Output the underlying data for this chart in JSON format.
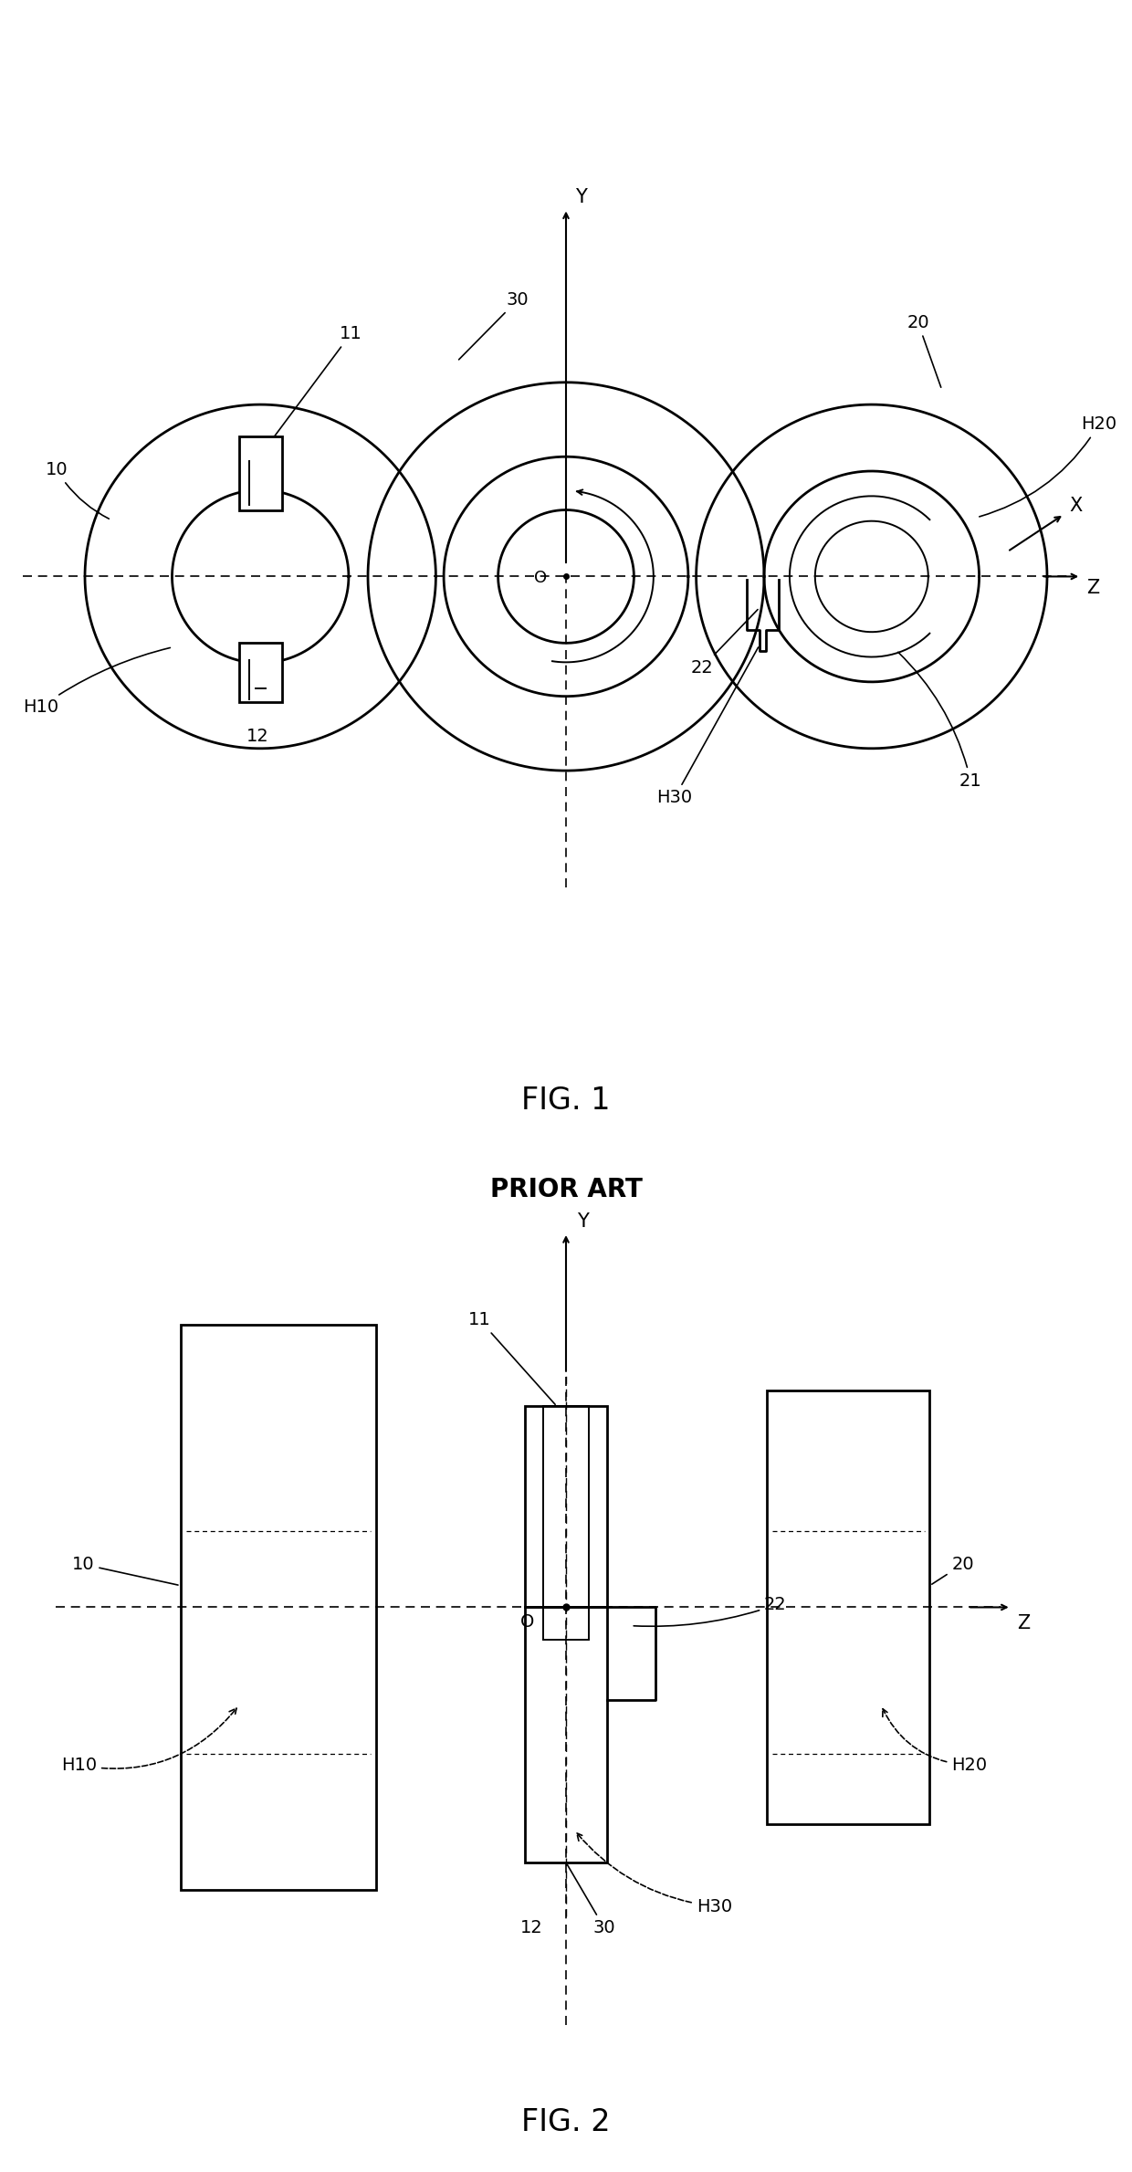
{
  "bg_color": "#ffffff",
  "lw_main": 2.0,
  "lw_thin": 1.4,
  "fig1_label": "FIG. 1",
  "fig2_label": "FIG. 2",
  "prior_art": "PRIOR ART",
  "fontsize_label": 14,
  "fontsize_fig": 24,
  "fontsize_pa": 20
}
